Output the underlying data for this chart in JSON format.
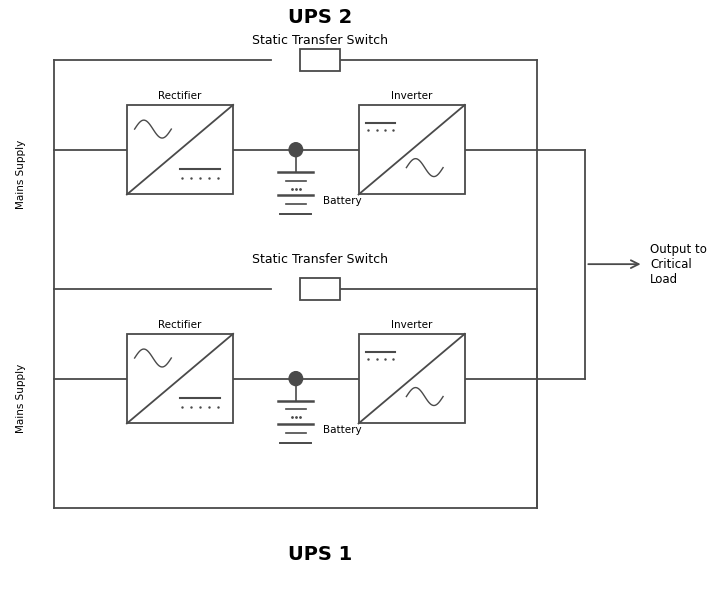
{
  "title_ups2": "UPS 2",
  "title_ups1": "UPS 1",
  "label_sts": "Static Transfer Switch",
  "label_rectifier": "Rectifier",
  "label_inverter": "Inverter",
  "label_battery": "Battery",
  "label_mains": "Mains Supply",
  "label_output": "Output to\nCritical\nLoad",
  "bg_color": "#ffffff",
  "line_color": "#4a4a4a",
  "lw": 1.3
}
